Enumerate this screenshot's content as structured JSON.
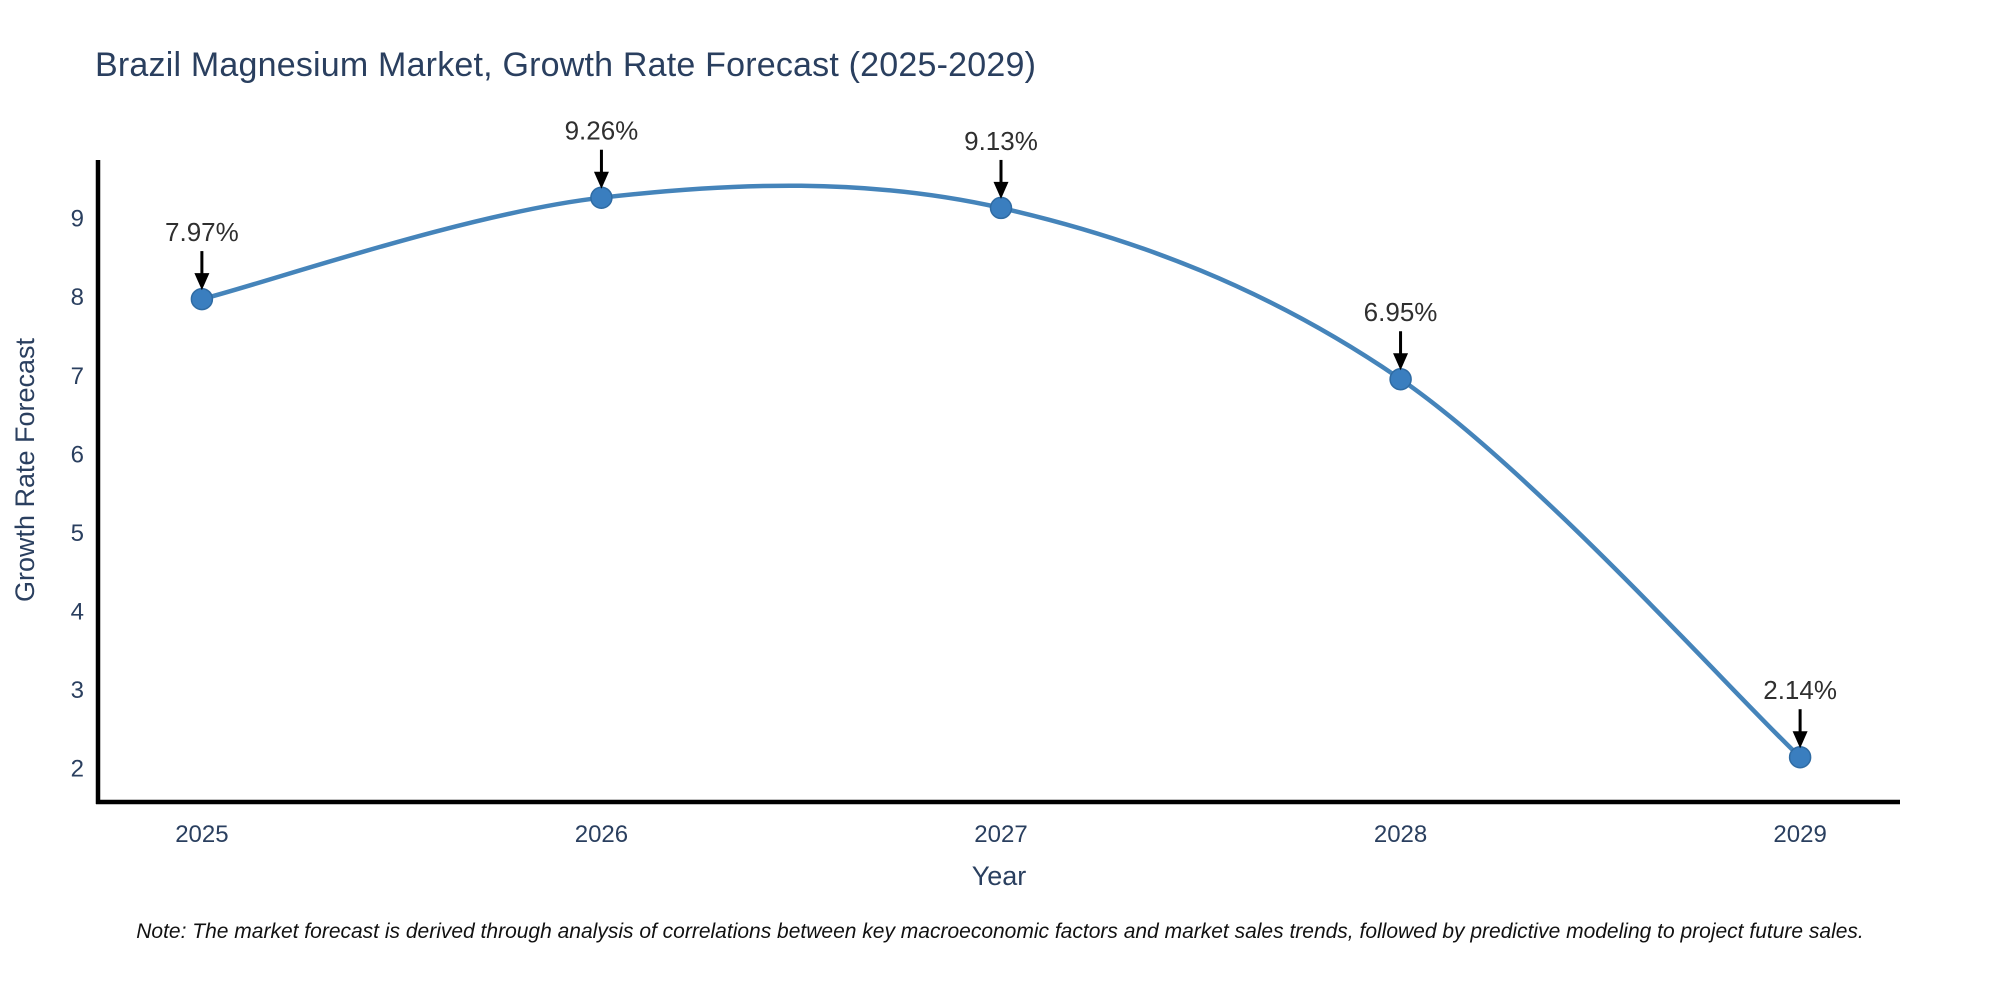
{
  "figure": {
    "note": "Note: The market forecast is derived through analysis of correlations between key macroeconomic factors and market sales trends, followed by predictive modeling to project future sales."
  },
  "chart_data": {
    "type": "line",
    "line_shape": "spline",
    "title": "Brazil Magnesium Market, Growth Rate Forecast (2025-2029)",
    "xlabel": "Year",
    "ylabel": "Growth Rate Forecast",
    "x": [
      2025,
      2026,
      2027,
      2028,
      2029
    ],
    "x_tick_labels": [
      "2025",
      "2026",
      "2027",
      "2028",
      "2029"
    ],
    "y": [
      7.97,
      9.26,
      9.13,
      6.95,
      2.14
    ],
    "point_labels": [
      "7.97%",
      "9.26%",
      "9.13%",
      "6.95%",
      "2.14%"
    ],
    "series_name": "Growth Rate Forecast",
    "y_ticks": [
      2,
      3,
      4,
      5,
      6,
      7,
      8,
      9
    ],
    "ylim": [
      1.57,
      9.74
    ],
    "xlim": [
      2024.74,
      2029.25
    ],
    "grid": false,
    "legend": "none",
    "annotations_have_arrows": true,
    "colors": {
      "line": "#4584ba",
      "marker": "#3a7ebf",
      "marker_edge": "#2f6ba3",
      "axis": "#000000",
      "tick_font": "#2a3f5f",
      "annotation_font": "#2f2f2f",
      "arrow": "#000000",
      "title_font": "#2a3f5f",
      "note_font": "#111111",
      "background": "#ffffff"
    }
  }
}
